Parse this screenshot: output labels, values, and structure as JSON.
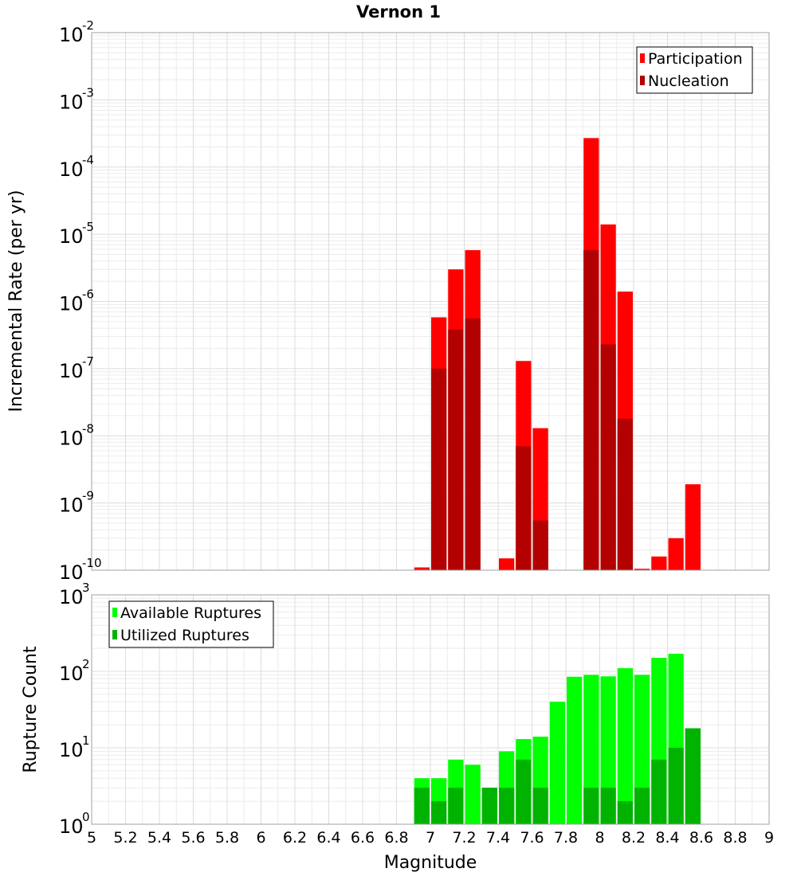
{
  "chart_data": {
    "title": "Vernon 1",
    "type": "bar",
    "xlabel": "Magnitude",
    "xlim": [
      5,
      9
    ],
    "x_ticks": [
      "5",
      "5.2",
      "5.4",
      "5.6",
      "5.8",
      "6",
      "6.2",
      "6.4",
      "6.6",
      "6.8",
      "7",
      "7.2",
      "7.4",
      "7.6",
      "7.8",
      "8",
      "8.2",
      "8.4",
      "8.6",
      "8.8",
      "9"
    ],
    "bin_width": 0.1,
    "panels": [
      {
        "ylabel": "Incremental Rate (per yr)",
        "yscale": "log",
        "ylim_exponents": [
          -10,
          -2
        ],
        "legend_position": "top-right",
        "series": [
          {
            "name": "Participation",
            "color": "#ff0000",
            "points": [
              {
                "x": 6.95,
                "y": 1.1e-10
              },
              {
                "x": 7.05,
                "y": 5.8e-07
              },
              {
                "x": 7.15,
                "y": 3e-06
              },
              {
                "x": 7.25,
                "y": 5.8e-06
              },
              {
                "x": 7.45,
                "y": 1.5e-10
              },
              {
                "x": 7.55,
                "y": 1.3e-07
              },
              {
                "x": 7.65,
                "y": 1.3e-08
              },
              {
                "x": 7.95,
                "y": 0.00027
              },
              {
                "x": 8.05,
                "y": 1.4e-05
              },
              {
                "x": 8.15,
                "y": 1.4e-06
              },
              {
                "x": 8.25,
                "y": 1.05e-10
              },
              {
                "x": 8.35,
                "y": 1.6e-10
              },
              {
                "x": 8.45,
                "y": 3e-10
              },
              {
                "x": 8.55,
                "y": 1.9e-09
              }
            ]
          },
          {
            "name": "Nucleation",
            "color": "#b30000",
            "points": [
              {
                "x": 7.05,
                "y": 1e-07
              },
              {
                "x": 7.15,
                "y": 3.8e-07
              },
              {
                "x": 7.25,
                "y": 5.6e-07
              },
              {
                "x": 7.55,
                "y": 7e-09
              },
              {
                "x": 7.65,
                "y": 5.5e-10
              },
              {
                "x": 7.95,
                "y": 5.8e-06
              },
              {
                "x": 8.05,
                "y": 2.3e-07
              },
              {
                "x": 8.15,
                "y": 1.8e-08
              }
            ]
          }
        ]
      },
      {
        "ylabel": "Rupture Count",
        "yscale": "log",
        "ylim_exponents": [
          0,
          3
        ],
        "legend_position": "top-left",
        "series": [
          {
            "name": "Available Ruptures",
            "color": "#00ff00",
            "points": [
              {
                "x": 6.25,
                "y": 1
              },
              {
                "x": 6.95,
                "y": 4
              },
              {
                "x": 7.05,
                "y": 4
              },
              {
                "x": 7.15,
                "y": 7
              },
              {
                "x": 7.25,
                "y": 6
              },
              {
                "x": 7.35,
                "y": 3
              },
              {
                "x": 7.45,
                "y": 9
              },
              {
                "x": 7.55,
                "y": 13
              },
              {
                "x": 7.65,
                "y": 14
              },
              {
                "x": 7.75,
                "y": 40
              },
              {
                "x": 7.85,
                "y": 85
              },
              {
                "x": 7.95,
                "y": 90
              },
              {
                "x": 8.05,
                "y": 86
              },
              {
                "x": 8.15,
                "y": 110
              },
              {
                "x": 8.25,
                "y": 90
              },
              {
                "x": 8.35,
                "y": 150
              },
              {
                "x": 8.45,
                "y": 170
              },
              {
                "x": 8.55,
                "y": 18
              }
            ]
          },
          {
            "name": "Utilized Ruptures",
            "color": "#00b300",
            "points": [
              {
                "x": 6.95,
                "y": 3
              },
              {
                "x": 7.05,
                "y": 2
              },
              {
                "x": 7.15,
                "y": 3
              },
              {
                "x": 7.25,
                "y": 1
              },
              {
                "x": 7.35,
                "y": 3
              },
              {
                "x": 7.45,
                "y": 3
              },
              {
                "x": 7.55,
                "y": 7
              },
              {
                "x": 7.65,
                "y": 3
              },
              {
                "x": 7.95,
                "y": 3
              },
              {
                "x": 8.05,
                "y": 3
              },
              {
                "x": 8.15,
                "y": 2
              },
              {
                "x": 8.25,
                "y": 3
              },
              {
                "x": 8.35,
                "y": 7
              },
              {
                "x": 8.45,
                "y": 10
              },
              {
                "x": 8.55,
                "y": 18
              }
            ]
          }
        ]
      }
    ]
  }
}
